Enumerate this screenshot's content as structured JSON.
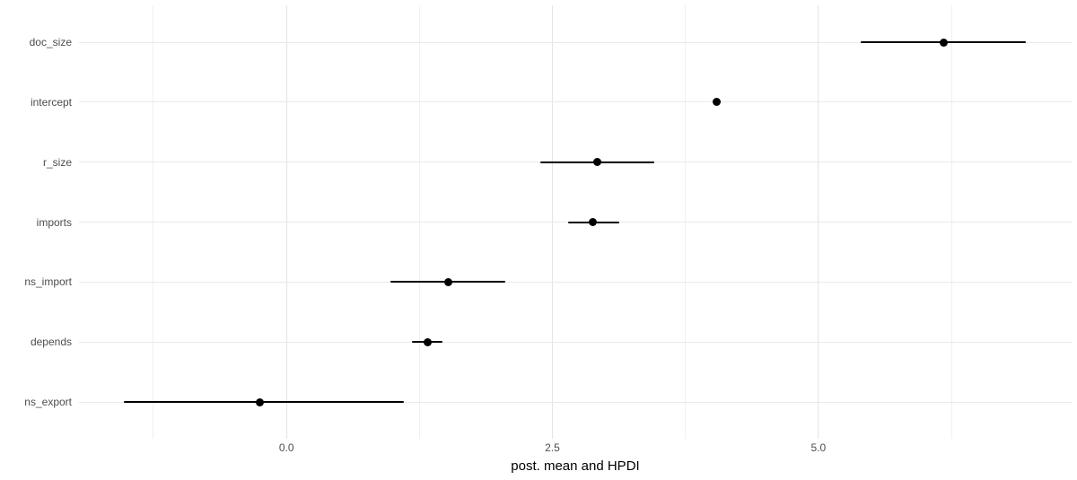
{
  "chart_data": {
    "type": "scatter",
    "subtype": "dot-interval-forest",
    "orientation": "horizontal",
    "title": "",
    "xlabel": "post. mean and HPDI",
    "ylabel": "",
    "legend": "none",
    "grid": "vertical major+minor, horizontal major per category",
    "background": "#ffffff",
    "categories": [
      "doc_size",
      "intercept",
      "r_size",
      "imports",
      "ns_import",
      "depends",
      "ns_export"
    ],
    "series": [
      {
        "name": "posterior mean and HPDI",
        "points": [
          {
            "category": "doc_size",
            "mean": 6.18,
            "hpdi_low": 5.4,
            "hpdi_high": 6.95
          },
          {
            "category": "intercept",
            "mean": 4.04,
            "hpdi_low": 4.04,
            "hpdi_high": 4.04
          },
          {
            "category": "r_size",
            "mean": 2.92,
            "hpdi_low": 2.39,
            "hpdi_high": 3.46
          },
          {
            "category": "imports",
            "mean": 2.88,
            "hpdi_low": 2.65,
            "hpdi_high": 3.13
          },
          {
            "category": "ns_import",
            "mean": 1.52,
            "hpdi_low": 0.98,
            "hpdi_high": 2.06
          },
          {
            "category": "depends",
            "mean": 1.33,
            "hpdi_low": 1.18,
            "hpdi_high": 1.47
          },
          {
            "category": "ns_export",
            "mean": -0.25,
            "hpdi_low": -1.53,
            "hpdi_high": 1.1
          }
        ]
      }
    ],
    "xlim": [
      -1.95,
      7.38
    ],
    "x_major_ticks": [
      0.0,
      2.5,
      5.0
    ],
    "x_tick_labels": [
      "0.0",
      "2.5",
      "5.0"
    ],
    "x_minor_ticks": [
      -1.25,
      1.25,
      3.75,
      6.25
    ],
    "colors": {
      "point": "#000000",
      "interval_line": "#000000",
      "grid_major": "#e4e4e4",
      "grid_minor": "#f0f0f0",
      "axis_text": "#4d4d4d",
      "axis_title": "#000000",
      "background": "#ffffff"
    }
  }
}
